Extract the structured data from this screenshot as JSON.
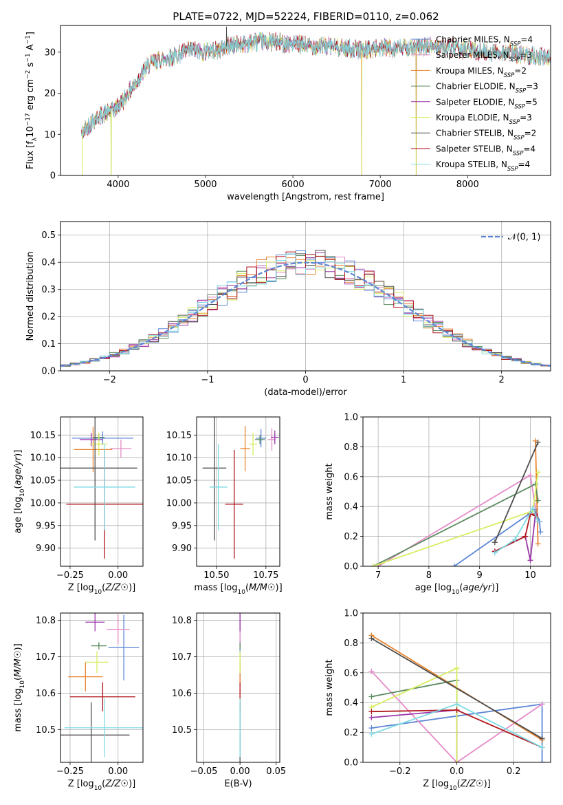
{
  "figure_title": "PLATE=0722, MJD=52224, FIBERID=0110, z=0.062",
  "models": [
    {
      "name": "Chabrier MILES",
      "nssp": "4",
      "color": "#5b86d6"
    },
    {
      "name": "Salpeter MILES",
      "nssp": "3",
      "color": "#e58ac8"
    },
    {
      "name": "Kroupa MILES",
      "nssp": "2",
      "color": "#e9832c"
    },
    {
      "name": "Chabrier ELODIE",
      "nssp": "3",
      "color": "#5a8a5e"
    },
    {
      "name": "Salpeter ELODIE",
      "nssp": "5",
      "color": "#9a36a8"
    },
    {
      "name": "Kroupa ELODIE",
      "nssp": "3",
      "color": "#d6ee5e"
    },
    {
      "name": "Chabrier STELIB",
      "nssp": "2",
      "color": "#4d4d4d"
    },
    {
      "name": "Salpeter STELIB",
      "nssp": "4",
      "color": "#b0161e"
    },
    {
      "name": "Kroupa STELIB",
      "nssp": "4",
      "color": "#7fdbe4"
    }
  ],
  "chart_data": [
    {
      "id": "spectrum",
      "type": "line",
      "title": "PLATE=0722, MJD=52224, FIBERID=0110, z=0.062",
      "xlabel": "wavelength [Angstrom, rest frame]",
      "ylabel": "Flux [f_λ 10^-17 erg cm^-2 s^-1 A^-1]",
      "xlim": [
        3340,
        8950
      ],
      "ylim": [
        0,
        36.5
      ],
      "xticks": [
        4000,
        5000,
        6000,
        7000,
        8000
      ],
      "yticks": [
        0,
        10,
        20,
        30
      ],
      "grid": false,
      "legend": "top-right",
      "spectrum_envelope": {
        "x": [
          3580,
          3650,
          3750,
          3850,
          3950,
          4050,
          4150,
          4250,
          4350,
          4450,
          4550,
          4650,
          4750,
          4850,
          4950,
          5050,
          5150,
          5250,
          5400,
          5600,
          5800,
          6000,
          6200,
          6400,
          6600,
          6800,
          7000,
          7200,
          7400,
          7600,
          7800,
          8000,
          8200,
          8400,
          8600,
          8800,
          8950
        ],
        "y": [
          10,
          12,
          14,
          15,
          16,
          18,
          21,
          24,
          27,
          28,
          28.5,
          29,
          30,
          30.5,
          30,
          30.5,
          30.5,
          31.5,
          32,
          32.5,
          32.5,
          32,
          31.5,
          31.5,
          31,
          30.5,
          31,
          31,
          31,
          31.5,
          31,
          30.5,
          30,
          30,
          29.5,
          29,
          28.5
        ]
      },
      "spikes": [
        {
          "x": 3590,
          "y": 0
        },
        {
          "x": 3920,
          "y": 0
        },
        {
          "x": 5240,
          "y": 36.2
        },
        {
          "x": 6790,
          "y": 0
        },
        {
          "x": 7410,
          "y": 0
        }
      ]
    },
    {
      "id": "residuals",
      "type": "step",
      "xlabel": "(data-model)/error",
      "ylabel": "Normed distribution",
      "xlim": [
        -2.5,
        2.5
      ],
      "ylim": [
        0,
        0.55
      ],
      "xticks": [
        -2,
        -1,
        0,
        1,
        2
      ],
      "yticks": [
        0.0,
        0.1,
        0.2,
        0.3,
        0.4,
        0.5
      ],
      "grid": true,
      "legend": "top-right",
      "reference_label": "𝒩(0, 1)",
      "reference_color": "#5b86d6",
      "bin_width": 0.1,
      "bins_from": -2.5
    },
    {
      "id": "age-vs-z",
      "type": "errorbar",
      "xlabel": "Z [log10(Z/Z☉)]",
      "ylabel": "age [log10(age/yr)]",
      "xlim": [
        -0.3,
        0.13
      ],
      "ylim": [
        9.86,
        10.19
      ],
      "xticks": [
        -0.25,
        0.0
      ],
      "yticks": [
        9.9,
        9.95,
        10.0,
        10.05,
        10.1,
        10.15
      ],
      "grid": true,
      "points": [
        {
          "x": -0.08,
          "y": 10.143,
          "xerr": 0.16,
          "yerr": 0.015
        },
        {
          "x": 0.015,
          "y": 10.12,
          "xerr": 0.055,
          "yerr": 0.02
        },
        {
          "x": -0.13,
          "y": 10.118,
          "xerr": 0.1,
          "yerr": 0.05
        },
        {
          "x": -0.1,
          "y": 10.145,
          "xerr": 0.03,
          "yerr": 0.01
        },
        {
          "x": -0.14,
          "y": 10.14,
          "xerr": 0.06,
          "yerr": 0.015
        },
        {
          "x": -0.1,
          "y": 10.13,
          "xerr": 0.045,
          "yerr": 0.025
        },
        {
          "x": -0.12,
          "y": 10.077,
          "xerr": 0.22,
          "yerr": 0.16
        },
        {
          "x": -0.07,
          "y": 9.997,
          "xerr": 0.2,
          "yerr": 0.12
        },
        {
          "x": -0.07,
          "y": 10.035,
          "xerr": 0.16,
          "yerr": 0.095
        }
      ]
    },
    {
      "id": "age-vs-mass",
      "type": "errorbar",
      "xlabel": "mass [log10(M/M☉)]",
      "ylabel": "",
      "xlim": [
        10.4,
        10.82
      ],
      "ylim": [
        9.86,
        10.19
      ],
      "xticks": [
        10.5,
        10.75
      ],
      "yticks": [
        9.9,
        9.95,
        10.0,
        10.05,
        10.1,
        10.15
      ],
      "grid": true,
      "points": [
        {
          "x": 10.725,
          "y": 10.143,
          "xerr": 0.025,
          "yerr": 0.02
        },
        {
          "x": 10.78,
          "y": 10.14,
          "xerr": 0.02,
          "yerr": 0.025
        },
        {
          "x": 10.645,
          "y": 10.12,
          "xerr": 0.025,
          "yerr": 0.05
        },
        {
          "x": 10.72,
          "y": 10.14,
          "xerr": 0.025,
          "yerr": 0.01
        },
        {
          "x": 10.795,
          "y": 10.145,
          "xerr": 0.02,
          "yerr": 0.015
        },
        {
          "x": 10.685,
          "y": 10.13,
          "xerr": 0.02,
          "yerr": 0.025
        },
        {
          "x": 10.49,
          "y": 10.077,
          "xerr": 0.06,
          "yerr": 0.16
        },
        {
          "x": 10.59,
          "y": 9.997,
          "xerr": 0.045,
          "yerr": 0.12
        },
        {
          "x": 10.51,
          "y": 10.035,
          "xerr": 0.045,
          "yerr": 0.095
        }
      ]
    },
    {
      "id": "weight-vs-age",
      "type": "line",
      "xlabel": "age [log10(age/yr)]",
      "ylabel": "mass weight",
      "xlim": [
        6.7,
        10.4
      ],
      "ylim": [
        0,
        1.0
      ],
      "xticks": [
        7,
        8,
        9,
        10
      ],
      "yticks": [
        0.0,
        0.2,
        0.4,
        0.6,
        0.8,
        1.0
      ],
      "grid": true,
      "series": [
        {
          "x": [
            8.5,
            10.1,
            10.18,
            10.2
          ],
          "y": [
            0.0,
            0.38,
            0.3,
            0.23
          ]
        },
        {
          "x": [
            7.0,
            10.0,
            10.1
          ],
          "y": [
            0.0,
            0.61,
            0.39
          ]
        },
        {
          "x": [
            10.1,
            10.15
          ],
          "y": [
            0.84,
            0.15
          ]
        },
        {
          "x": [
            6.9,
            10.1,
            10.15
          ],
          "y": [
            0.0,
            0.55,
            0.44
          ]
        },
        {
          "x": [
            9.3,
            9.9,
            10.0,
            10.1,
            10.15
          ],
          "y": [
            0.1,
            0.2,
            0.04,
            0.35,
            0.3
          ]
        },
        {
          "x": [
            6.9,
            10.05,
            10.15
          ],
          "y": [
            0.0,
            0.37,
            0.63
          ]
        },
        {
          "x": [
            9.3,
            10.15
          ],
          "y": [
            0.16,
            0.83
          ]
        },
        {
          "x": [
            9.3,
            9.9,
            10.0,
            10.1
          ],
          "y": [
            0.1,
            0.2,
            0.35,
            0.34
          ]
        },
        {
          "x": [
            9.3,
            9.7,
            10.05,
            10.15
          ],
          "y": [
            0.09,
            0.18,
            0.39,
            0.3
          ]
        }
      ]
    },
    {
      "id": "mass-vs-z",
      "type": "errorbar",
      "xlabel": "Z [log10(Z/Z☉)]",
      "ylabel": "mass [log10(M/M☉)]",
      "xlim": [
        -0.3,
        0.13
      ],
      "ylim": [
        10.41,
        10.82
      ],
      "xticks": [
        -0.25,
        0.0
      ],
      "yticks": [
        10.5,
        10.6,
        10.7,
        10.8
      ],
      "grid": true,
      "points": [
        {
          "x": 0.03,
          "y": 10.725,
          "xerr": 0.08,
          "yerr": 0.09
        },
        {
          "x": 0.0,
          "y": 10.775,
          "xerr": 0.06,
          "yerr": 0.04
        },
        {
          "x": -0.17,
          "y": 10.645,
          "xerr": 0.09,
          "yerr": 0.04
        },
        {
          "x": -0.1,
          "y": 10.73,
          "xerr": 0.04,
          "yerr": 0.01
        },
        {
          "x": -0.12,
          "y": 10.795,
          "xerr": 0.05,
          "yerr": 0.025
        },
        {
          "x": -0.11,
          "y": 10.685,
          "xerr": 0.06,
          "yerr": 0.03
        },
        {
          "x": -0.14,
          "y": 10.485,
          "xerr": 0.2,
          "yerr": 0.09
        },
        {
          "x": -0.08,
          "y": 10.59,
          "xerr": 0.17,
          "yerr": 0.04
        },
        {
          "x": -0.07,
          "y": 10.505,
          "xerr": 0.21,
          "yerr": 0.08
        }
      ]
    },
    {
      "id": "mass-vs-ebv",
      "type": "errorbar",
      "xlabel": "E(B-V)",
      "ylabel": "",
      "xlim": [
        -0.06,
        0.055
      ],
      "ylim": [
        10.41,
        10.82
      ],
      "xticks": [
        -0.05,
        0.0,
        0.05
      ],
      "yticks": [
        10.5,
        10.6,
        10.7,
        10.8
      ],
      "grid": true,
      "points": [
        {
          "x": 0.0,
          "y": 10.725,
          "xerr": 0.0,
          "yerr": 0.09
        },
        {
          "x": 0.0,
          "y": 10.775,
          "xerr": 0.0,
          "yerr": 0.04
        },
        {
          "x": 0.0,
          "y": 10.645,
          "xerr": 0.0,
          "yerr": 0.04
        },
        {
          "x": 0.0,
          "y": 10.73,
          "xerr": 0.0,
          "yerr": 0.01
        },
        {
          "x": 0.0,
          "y": 10.795,
          "xerr": 0.0,
          "yerr": 0.025
        },
        {
          "x": 0.0,
          "y": 10.685,
          "xerr": 0.0,
          "yerr": 0.03
        },
        {
          "x": 0.0,
          "y": 10.485,
          "xerr": 0.0,
          "yerr": 0.09
        },
        {
          "x": 0.0,
          "y": 10.59,
          "xerr": 0.0,
          "yerr": 0.04
        },
        {
          "x": 0.0,
          "y": 10.505,
          "xerr": 0.0,
          "yerr": 0.08
        }
      ]
    },
    {
      "id": "weight-vs-z",
      "type": "line",
      "xlabel": "Z [log10(Z/Z☉)]",
      "ylabel": "mass weight",
      "xlim": [
        -0.33,
        0.33
      ],
      "ylim": [
        0,
        1.0
      ],
      "xticks": [
        -0.2,
        0.0,
        0.2
      ],
      "yticks": [
        0.0,
        0.2,
        0.4,
        0.6,
        0.8,
        1.0
      ],
      "grid": true,
      "series": [
        {
          "x": [
            -0.3,
            0.0,
            0.3,
            0.3
          ],
          "y": [
            0.23,
            0.31,
            0.39,
            0.0
          ]
        },
        {
          "x": [
            -0.3,
            0.0,
            0.3
          ],
          "y": [
            0.61,
            0.0,
            0.39
          ]
        },
        {
          "x": [
            -0.3,
            0.3
          ],
          "y": [
            0.85,
            0.15
          ]
        },
        {
          "x": [
            -0.3,
            0.0,
            0.0
          ],
          "y": [
            0.44,
            0.55,
            0.0
          ]
        },
        {
          "x": [
            -0.3,
            0.0,
            0.0
          ],
          "y": [
            0.3,
            0.35,
            0.0
          ]
        },
        {
          "x": [
            -0.3,
            0.0,
            0.0
          ],
          "y": [
            0.37,
            0.63,
            0.0
          ]
        },
        {
          "x": [
            -0.3,
            0.3
          ],
          "y": [
            0.83,
            0.16
          ]
        },
        {
          "x": [
            -0.3,
            0.0,
            0.3
          ],
          "y": [
            0.34,
            0.35,
            0.1
          ]
        },
        {
          "x": [
            -0.3,
            0.0,
            0.3
          ],
          "y": [
            0.19,
            0.39,
            0.1
          ]
        }
      ]
    }
  ]
}
